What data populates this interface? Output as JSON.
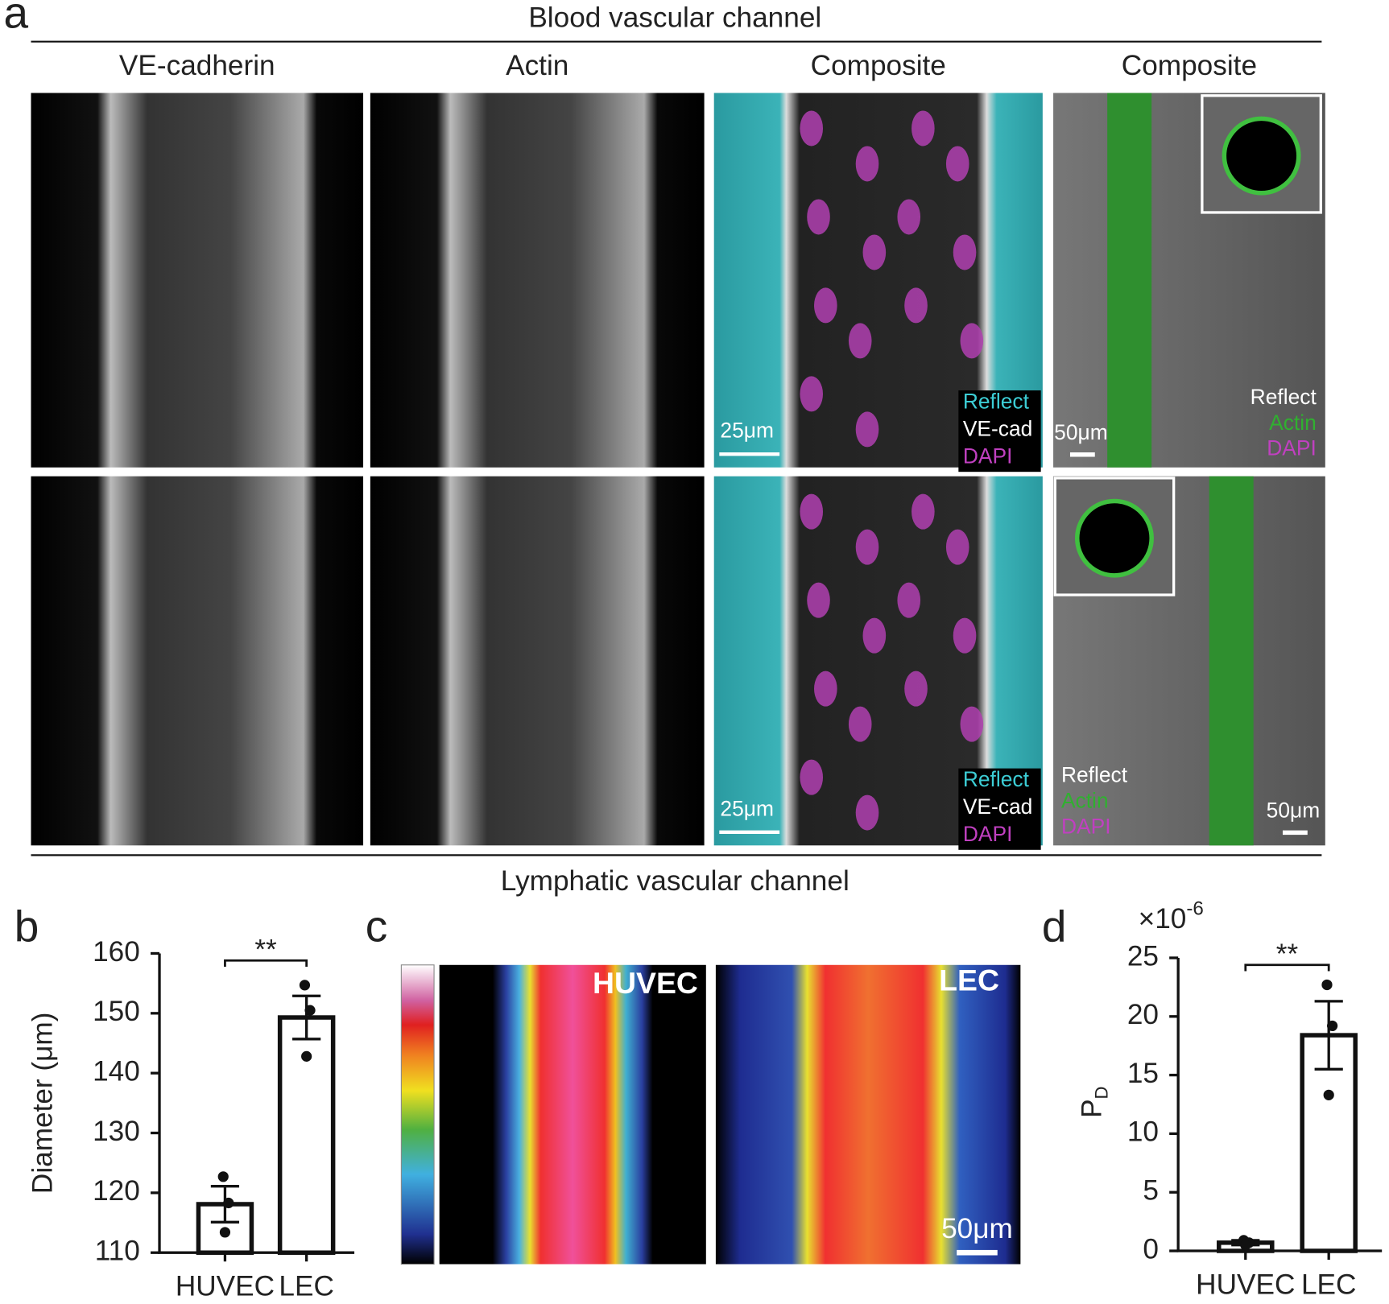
{
  "panel_a": {
    "letter": "a",
    "top_title": "Blood vascular channel",
    "bottom_title": "Lymphatic vascular channel",
    "columns": [
      "VE-cadherin",
      "Actin",
      "Composite",
      "Composite"
    ],
    "rows": [
      {
        "composite_legend": [
          "Reflect",
          "VE-cad",
          "DAPI"
        ],
        "composite_scale": "25μm",
        "cross_legend": [
          "Reflect",
          "Actin",
          "DAPI"
        ],
        "cross_scale": "50μm"
      },
      {
        "composite_legend": [
          "Reflect",
          "VE-cad",
          "DAPI"
        ],
        "composite_scale": "25μm",
        "cross_legend": [
          "Reflect",
          "Actin",
          "DAPI"
        ],
        "cross_scale": "50μm"
      }
    ]
  },
  "panel_c": {
    "letter": "c",
    "labels": [
      "HUVEC",
      "LEC"
    ],
    "scale": "50μm"
  },
  "chart_data": [
    {
      "type": "bar",
      "letter": "b",
      "ylabel": "Diameter (μm)",
      "categories": [
        "HUVEC",
        "LEC"
      ],
      "values": [
        118.1,
        149.3
      ],
      "errors": [
        3.0,
        3.6
      ],
      "points": [
        [
          122.7,
          118.3,
          113.4
        ],
        [
          154.7,
          150.5,
          142.8
        ]
      ],
      "significance": "**",
      "ylim": [
        110,
        160
      ],
      "yticks": [
        110,
        120,
        130,
        140,
        150,
        160
      ]
    },
    {
      "type": "bar",
      "letter": "d",
      "ylabel": "P",
      "ylabel_sub": "D",
      "multiplier": "×10",
      "multiplier_exp": "-6",
      "categories": [
        "HUVEC",
        "LEC"
      ],
      "values": [
        0.7,
        18.4
      ],
      "errors": [
        0.2,
        2.9
      ],
      "points": [
        [
          0.9,
          0.7,
          0.5
        ],
        [
          22.7,
          19.2,
          13.3
        ]
      ],
      "significance": "**",
      "ylim": [
        0,
        25
      ],
      "yticks": [
        0,
        5,
        10,
        15,
        20,
        25
      ]
    }
  ]
}
